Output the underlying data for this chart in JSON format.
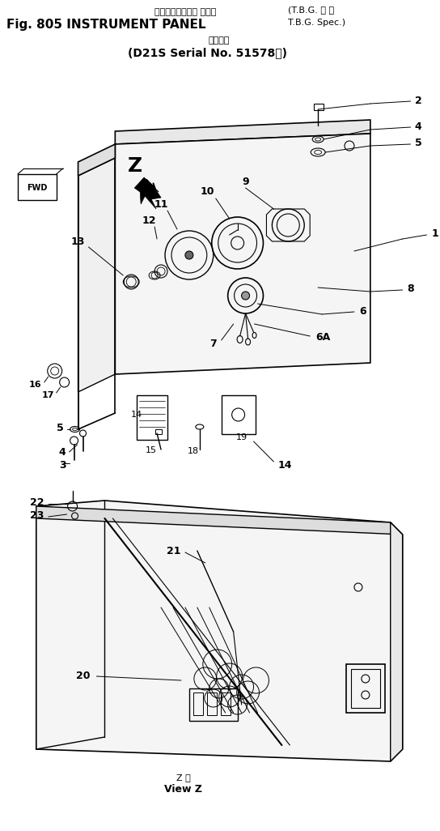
{
  "title_line1_jp": "インスツルメント パネル",
  "title_line1_bracket_jp": "T.B.G. 仕 様",
  "title_line1_en": "Fig. 805 INSTRUMENT PANEL",
  "title_line2_bracket_en": "T.B.G. Spec.",
  "title_line3_jp": "適用号機",
  "title_line3_en": "D21S Serial No. 51578～",
  "view_label_jp": "Z 機",
  "view_label_en": "View Z",
  "bg": "#ffffff",
  "lc": "#000000"
}
